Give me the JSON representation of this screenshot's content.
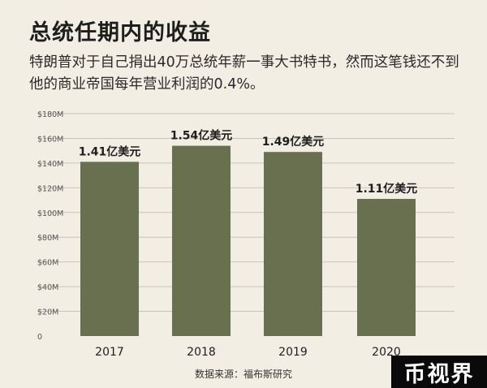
{
  "chart_data": {
    "type": "bar",
    "title": "总统任期内的收益",
    "subtitle": "特朗普对于自己捐出40万总统年薪一事大书特书，然而这笔钱还不到他的商业帝国每年营业利润的0.4%。",
    "categories": [
      "2017",
      "2018",
      "2019",
      "2020"
    ],
    "values": [
      141,
      154,
      149,
      111
    ],
    "value_unit": "$M",
    "data_labels": [
      "1.41亿美元",
      "1.54亿美元",
      "1.49亿美元",
      "1.11亿美元"
    ],
    "ylim": [
      0,
      180
    ],
    "yticks": [
      {
        "value": 0,
        "label": "0"
      },
      {
        "value": 20,
        "label": "$20M"
      },
      {
        "value": 40,
        "label": "$40M"
      },
      {
        "value": 60,
        "label": "$60M"
      },
      {
        "value": 80,
        "label": "$80M"
      },
      {
        "value": 100,
        "label": "$100M"
      },
      {
        "value": 120,
        "label": "$120M"
      },
      {
        "value": 140,
        "label": "$140M"
      },
      {
        "value": 160,
        "label": "$160M"
      },
      {
        "value": 180,
        "label": "$180M"
      }
    ],
    "xlabel": "",
    "ylabel": "",
    "grid": true,
    "bar_color": "#68704f"
  },
  "source": "数据来源：福布斯研究",
  "brand": "币视界"
}
